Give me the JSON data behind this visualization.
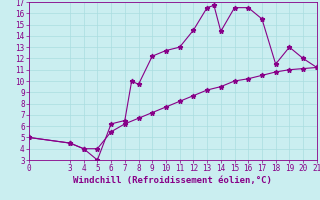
{
  "xlabel": "Windchill (Refroidissement éolien,°C)",
  "background_color": "#caeef0",
  "line_color": "#880088",
  "marker": "*",
  "xlim": [
    0,
    21
  ],
  "ylim": [
    3,
    17
  ],
  "xticks": [
    0,
    3,
    4,
    5,
    6,
    7,
    8,
    9,
    10,
    11,
    12,
    13,
    14,
    15,
    16,
    17,
    18,
    19,
    20,
    21
  ],
  "yticks": [
    3,
    4,
    5,
    6,
    7,
    8,
    9,
    10,
    11,
    12,
    13,
    14,
    15,
    16,
    17
  ],
  "curve1_x": [
    0,
    3,
    4,
    5,
    6,
    7,
    7.5,
    8,
    9,
    10,
    11,
    12,
    13,
    13.5,
    14,
    15,
    16,
    17,
    18,
    19,
    20,
    21
  ],
  "curve1_y": [
    5,
    4.5,
    4,
    3,
    6.2,
    6.5,
    10,
    9.7,
    12.2,
    12.7,
    13,
    14.5,
    16.5,
    16.7,
    14.4,
    16.5,
    16.5,
    15.5,
    11.5,
    13,
    12,
    11.2
  ],
  "curve2_x": [
    0,
    3,
    4,
    5,
    6,
    7,
    8,
    9,
    10,
    11,
    12,
    13,
    14,
    15,
    16,
    17,
    18,
    19,
    20,
    21
  ],
  "curve2_y": [
    5,
    4.5,
    4,
    4,
    5.5,
    6.2,
    6.7,
    7.2,
    7.7,
    8.2,
    8.7,
    9.2,
    9.5,
    10,
    10.2,
    10.5,
    10.8,
    11,
    11.1,
    11.2
  ],
  "grid_color": "#aadde0",
  "tick_color": "#880088",
  "label_color": "#880088",
  "font": "monospace",
  "tick_fontsize": 5.5,
  "xlabel_fontsize": 6.5
}
